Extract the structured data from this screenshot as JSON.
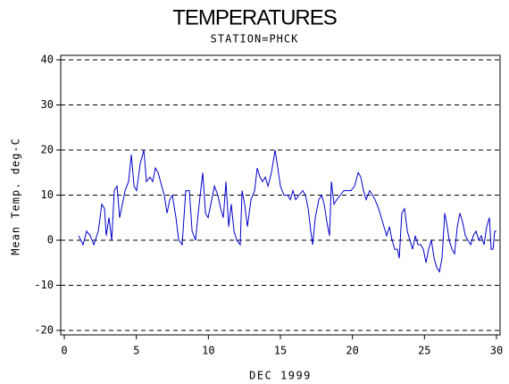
{
  "chart_data": {
    "type": "line",
    "title": "TEMPERATURES",
    "subtitle": "STATION=PHCK",
    "x_label": "DEC 1999",
    "y_label": "Mean Temp. deg-C",
    "xlim": [
      -0.25,
      30.25
    ],
    "ylim": [
      -21,
      41
    ],
    "xticks": [
      0,
      5,
      10,
      15,
      20,
      25,
      30
    ],
    "yticks": [
      -20,
      -10,
      0,
      10,
      20,
      30,
      40
    ],
    "grid": true,
    "series": [
      {
        "name": "Mean Temp",
        "color": "#0000cc",
        "x": [
          1.0,
          1.3,
          1.55,
          1.8,
          2.05,
          2.36,
          2.6,
          2.79,
          2.91,
          3.1,
          3.29,
          3.47,
          3.66,
          3.84,
          4.03,
          4.22,
          4.46,
          4.65,
          4.84,
          5.02,
          5.27,
          5.52,
          5.7,
          5.95,
          6.14,
          6.32,
          6.51,
          6.76,
          6.94,
          7.13,
          7.32,
          7.5,
          7.75,
          7.94,
          8.18,
          8.43,
          8.68,
          8.87,
          9.11,
          9.36,
          9.61,
          9.8,
          9.98,
          10.17,
          10.42,
          10.66,
          10.85,
          11.04,
          11.22,
          11.41,
          11.59,
          11.78,
          11.97,
          12.21,
          12.34,
          12.52,
          12.71,
          12.96,
          13.21,
          13.39,
          13.58,
          13.76,
          13.95,
          14.14,
          14.38,
          14.63,
          14.82,
          15.0,
          15.25,
          15.5,
          15.69,
          15.87,
          16.06,
          16.3,
          16.55,
          16.74,
          16.93,
          17.11,
          17.24,
          17.42,
          17.67,
          17.86,
          18.04,
          18.23,
          18.41,
          18.54,
          18.72,
          18.91,
          19.16,
          19.4,
          19.65,
          19.9,
          20.15,
          20.4,
          20.58,
          20.77,
          20.95,
          21.2,
          21.39,
          21.57,
          21.82,
          22.01,
          22.19,
          22.38,
          22.57,
          22.75,
          22.94,
          23.12,
          23.25,
          23.43,
          23.62,
          23.81,
          23.99,
          24.18,
          24.36,
          24.55,
          24.74,
          24.92,
          25.11,
          25.29,
          25.48,
          25.67,
          25.85,
          26.04,
          26.22,
          26.41,
          26.53,
          26.72,
          26.91,
          27.09,
          27.28,
          27.46,
          27.65,
          27.84,
          28.02,
          28.21,
          28.39,
          28.58,
          28.77,
          28.95,
          29.14,
          29.32,
          29.51,
          29.63,
          29.76,
          29.88,
          30.0
        ],
        "values": [
          1,
          -1,
          2,
          1,
          -1,
          2,
          8,
          7,
          1,
          5,
          0,
          11,
          12,
          5,
          8,
          11,
          13,
          19,
          12,
          11,
          17,
          20,
          13,
          14,
          13,
          16,
          15,
          12,
          10,
          6,
          9,
          10,
          5,
          0,
          -1,
          11,
          11,
          2,
          0,
          8,
          15,
          6,
          5,
          8,
          12,
          10,
          7,
          5,
          13,
          3,
          8,
          2,
          0,
          -1,
          11,
          8,
          3,
          9,
          11,
          16,
          14,
          13,
          14,
          12,
          15,
          20,
          16,
          12,
          10,
          10,
          9,
          11,
          9,
          10,
          11,
          10,
          7,
          2,
          -1,
          5,
          9,
          10,
          8,
          4,
          1,
          13,
          8,
          9,
          10,
          11,
          11,
          11,
          12,
          15,
          14,
          11,
          9,
          11,
          10,
          9,
          7,
          5,
          3,
          1,
          3,
          0,
          -2,
          -2,
          -4,
          6,
          7,
          2,
          0,
          -2,
          1,
          -1,
          -1,
          -2,
          -5,
          -2,
          0,
          -4,
          -6,
          -7,
          -4,
          6,
          4,
          0,
          -2,
          -3,
          3,
          6,
          4,
          1,
          0,
          -1,
          1,
          2,
          0,
          1,
          -1,
          3,
          5,
          -2,
          -2,
          2,
          2
        ]
      }
    ]
  }
}
